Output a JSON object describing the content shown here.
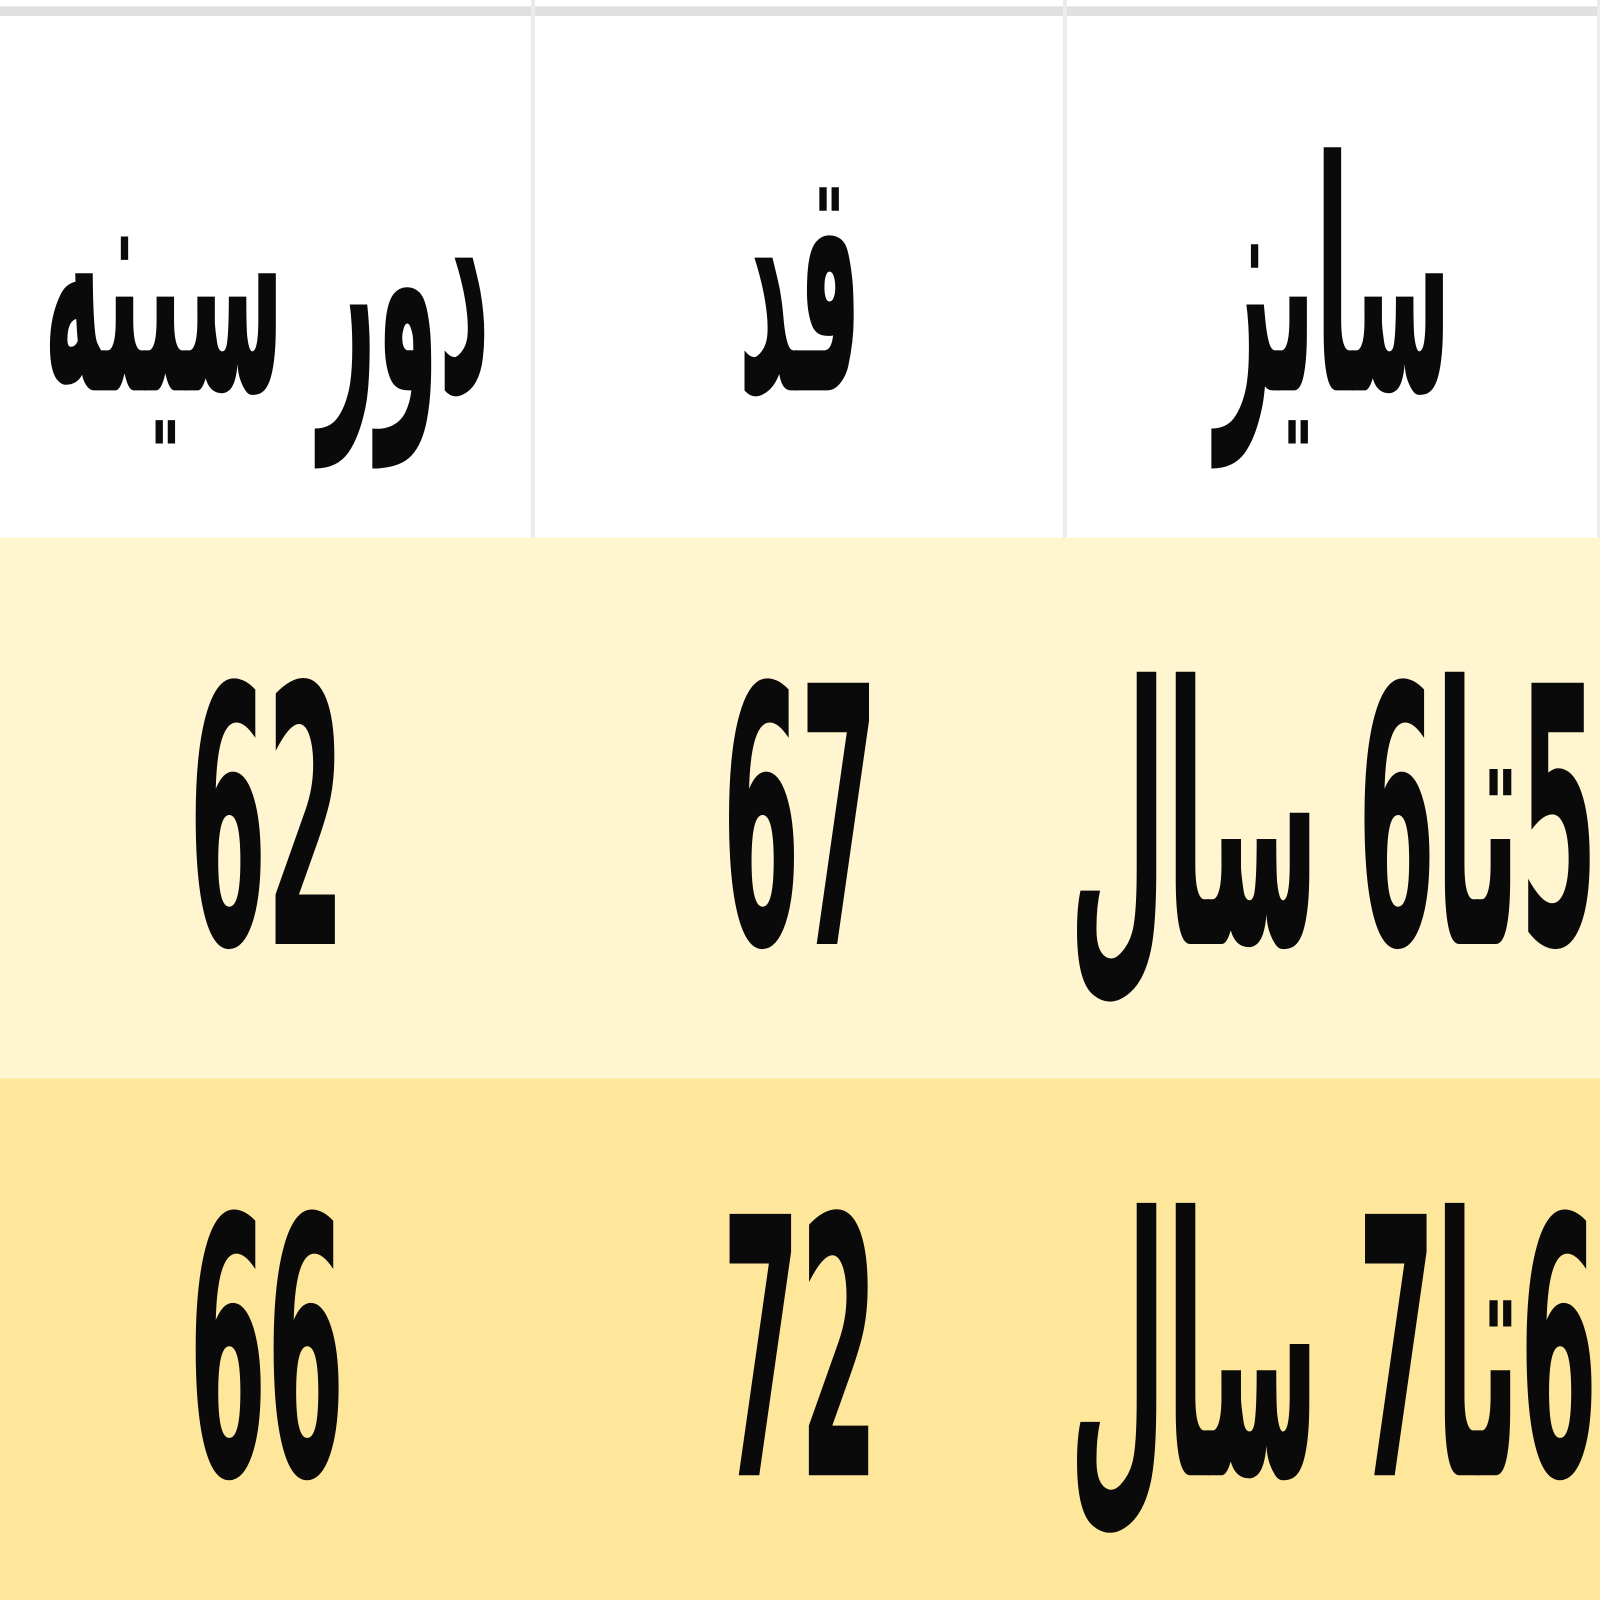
{
  "chart_data": {
    "type": "table",
    "direction": "rtl",
    "title": "",
    "columns": [
      "سایز",
      "قد",
      "دور سینه"
    ],
    "rows": [
      [
        "5تا6 سال",
        "67",
        "62"
      ],
      [
        "6تا7 سال",
        "72",
        "66"
      ]
    ]
  },
  "table": {
    "header": {
      "size": "سایز",
      "height": "قد",
      "chest": "دور سینه"
    },
    "rows": [
      {
        "size": "5تا6 سال",
        "height": "67",
        "chest": "62"
      },
      {
        "size": "6تا7 سال",
        "height": "72",
        "chest": "66"
      }
    ]
  },
  "colors": {
    "header_bg": "#FFFFFF",
    "row1_bg": "#FFF5D0",
    "row2_bg": "#FEE79A",
    "divider": "#ECECEC",
    "top_band": "#E0E0E0",
    "text": "#0A0A0A"
  }
}
